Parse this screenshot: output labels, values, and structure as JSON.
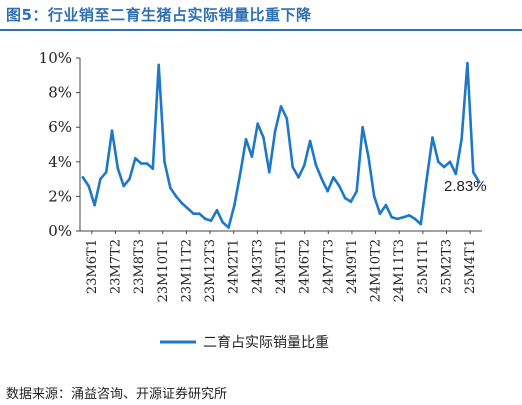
{
  "header": {
    "title": "图5：行业销至二育生猪占实际销量比重下降"
  },
  "footer": {
    "source": "数据来源：涌益咨询、开源证券研究所"
  },
  "chart_data": {
    "type": "line",
    "title": "图5：行业销至二育生猪占实际销量比重下降",
    "xlabel": "",
    "ylabel": "",
    "ylim": [
      0,
      10
    ],
    "yticks": [
      "0%",
      "2%",
      "4%",
      "6%",
      "8%",
      "10%"
    ],
    "x_tick_labels": [
      "23M6T1",
      "23M7T2",
      "23M8T3",
      "23M10T1",
      "23M11T2",
      "23M12T3",
      "24M2T1",
      "24M3T3",
      "24M5T1",
      "24M6T2",
      "24M7T3",
      "24M9T1",
      "24M10T2",
      "24M11T3",
      "25M1T1",
      "25M2T3",
      "25M4T1"
    ],
    "grid": false,
    "legend_position": "bottom",
    "series": [
      {
        "name": "二育占实际销量比重",
        "color": "#1f77c8",
        "values": [
          3.1,
          2.6,
          1.5,
          3.0,
          3.4,
          5.8,
          3.6,
          2.6,
          3.0,
          4.2,
          3.9,
          3.9,
          3.6,
          9.6,
          4.0,
          2.5,
          2.0,
          1.6,
          1.3,
          1.0,
          1.0,
          0.7,
          0.6,
          1.2,
          0.5,
          0.2,
          1.5,
          3.3,
          5.3,
          4.3,
          6.2,
          5.4,
          3.4,
          5.8,
          7.2,
          6.5,
          3.7,
          3.1,
          3.8,
          5.2,
          3.8,
          3.0,
          2.3,
          3.1,
          2.6,
          1.9,
          1.7,
          2.3,
          6.0,
          4.3,
          2.0,
          1.0,
          1.5,
          0.8,
          0.7,
          0.8,
          0.9,
          0.7,
          0.4,
          3.0,
          5.4,
          4.0,
          3.7,
          4.0,
          3.3,
          5.3,
          9.7,
          3.4,
          2.83
        ]
      }
    ],
    "annotations": [
      {
        "text": "2.83%",
        "at_value": 2.83
      }
    ]
  }
}
